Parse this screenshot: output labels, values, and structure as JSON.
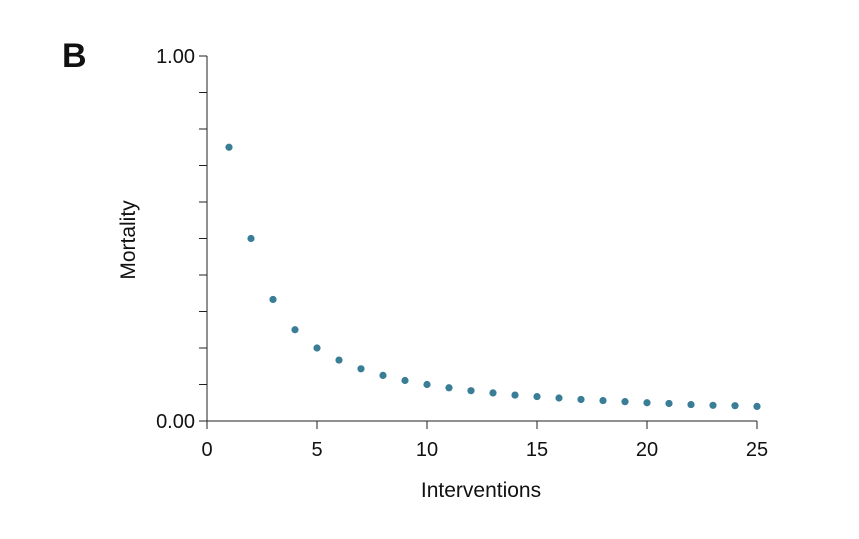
{
  "panel_label": "B",
  "colors": {
    "point": "#3a7d97",
    "axis": "#222222"
  },
  "chart_data": {
    "type": "scatter",
    "title": "",
    "xlabel": "Interventions",
    "ylabel": "Mortality",
    "xlim": [
      0,
      25
    ],
    "ylim": [
      0,
      1
    ],
    "x_ticks": [
      0,
      5,
      10,
      15,
      20,
      25
    ],
    "x_tick_labels": [
      "0",
      "5",
      "10",
      "15",
      "20",
      "25"
    ],
    "y_ticks_minor": [
      0,
      0.1,
      0.2,
      0.3,
      0.4,
      0.5,
      0.6,
      0.7,
      0.8,
      0.9,
      1.0
    ],
    "y_tick_labels": [
      {
        "value": 1.0,
        "label": "1.00"
      },
      {
        "value": 0.0,
        "label": "0.00"
      }
    ],
    "grid": false,
    "series": [
      {
        "x": [
          1,
          2,
          3,
          4,
          5,
          6,
          7,
          8,
          9,
          10,
          11,
          12,
          13,
          14,
          15,
          16,
          17,
          18,
          19,
          20,
          21,
          22,
          23,
          24,
          25
        ],
        "y": [
          0.75,
          0.5,
          0.333,
          0.25,
          0.2,
          0.167,
          0.143,
          0.125,
          0.111,
          0.1,
          0.091,
          0.083,
          0.077,
          0.071,
          0.067,
          0.063,
          0.059,
          0.056,
          0.053,
          0.05,
          0.048,
          0.045,
          0.043,
          0.042,
          0.04
        ]
      }
    ]
  }
}
